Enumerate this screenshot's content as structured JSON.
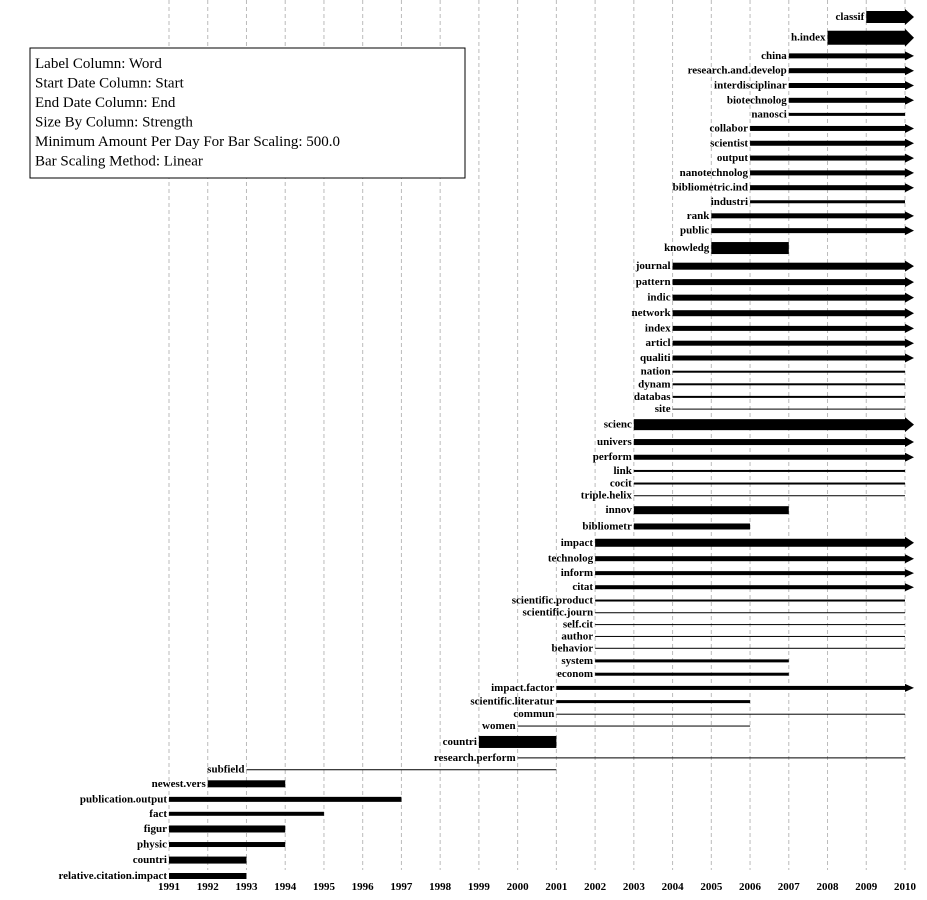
{
  "chart_data": {
    "type": "timeline",
    "annotations": [
      "Label Column: Word",
      "Start Date Column: Start",
      "End Date Column: End",
      "Size By Column: Strength",
      "Minimum Amount Per Day For Bar Scaling: 500.0",
      "Bar Scaling Method: Linear"
    ],
    "categories": [
      "classif",
      "h.index",
      "china",
      "research.and.develop",
      "interdisciplinar",
      "biotechnolog",
      "nanosci",
      "collabor",
      "scientist",
      "output",
      "nanotechnolog",
      "bibliometric.ind",
      "industri",
      "rank",
      "public",
      "knowledg",
      "journal",
      "pattern",
      "indic",
      "network",
      "index",
      "articl",
      "qualiti",
      "nation",
      "dynam",
      "databas",
      "site",
      "scienc",
      "univers",
      "perform",
      "link",
      "cocit",
      "triple.helix",
      "innov",
      "bibliometr",
      "impact",
      "technolog",
      "inform",
      "citat",
      "scientific.product",
      "scientific.journ",
      "self.cit",
      "author",
      "behavior",
      "system",
      "econom",
      "impact.factor",
      "scientific.literatur",
      "commun",
      "women",
      "countri",
      "research.perform",
      "subfield",
      "newest.vers",
      "publication.output",
      "fact",
      "figur",
      "physic",
      "countri",
      "relative.citation.impact"
    ],
    "start": [
      2009,
      2008,
      2007,
      2007,
      2007,
      2007,
      2007,
      2006,
      2006,
      2006,
      2006,
      2006,
      2006,
      2005,
      2005,
      2005,
      2004,
      2004,
      2004,
      2004,
      2004,
      2004,
      2004,
      2004,
      2004,
      2004,
      2004,
      2003,
      2003,
      2003,
      2003,
      2003,
      2003,
      2003,
      2003,
      2002,
      2002,
      2002,
      2002,
      2002,
      2002,
      2002,
      2002,
      2002,
      2002,
      2002,
      2001,
      2001,
      2001,
      2000,
      1999,
      2000,
      1993,
      1992,
      1991,
      1991,
      1991,
      1991,
      1991,
      1991
    ],
    "end": [
      2010,
      2010,
      2010,
      2010,
      2010,
      2010,
      2010,
      2010,
      2010,
      2010,
      2010,
      2010,
      2010,
      2010,
      2010,
      2007,
      2010,
      2010,
      2010,
      2010,
      2010,
      2010,
      2010,
      2010,
      2010,
      2010,
      2010,
      2010,
      2010,
      2010,
      2010,
      2010,
      2010,
      2007,
      2006,
      2010,
      2010,
      2010,
      2010,
      2010,
      2010,
      2010,
      2010,
      2010,
      2007,
      2007,
      2010,
      2006,
      2010,
      2006,
      2001,
      2010,
      2001,
      1994,
      1997,
      1995,
      1994,
      1994,
      1993,
      1993
    ],
    "strength": [
      12,
      14,
      5,
      5,
      5,
      5,
      3,
      5,
      5,
      5,
      5,
      5,
      3,
      5,
      5,
      12,
      7,
      6,
      6,
      6,
      5,
      5,
      5,
      2,
      2,
      2,
      1,
      11,
      6,
      5,
      2,
      2,
      1,
      8,
      6,
      8,
      5,
      4,
      4,
      2,
      1,
      1,
      1,
      1,
      3,
      3,
      4,
      3,
      1,
      1,
      12,
      1,
      1,
      7,
      5,
      4,
      7,
      5,
      7,
      6
    ],
    "xlim": [
      1991,
      2010
    ],
    "xticks": [
      1991,
      1992,
      1993,
      1994,
      1995,
      1996,
      1997,
      1998,
      1999,
      2000,
      2001,
      2002,
      2003,
      2004,
      2005,
      2006,
      2007,
      2008,
      2009,
      2010
    ],
    "grid": true,
    "color": "#000000"
  }
}
